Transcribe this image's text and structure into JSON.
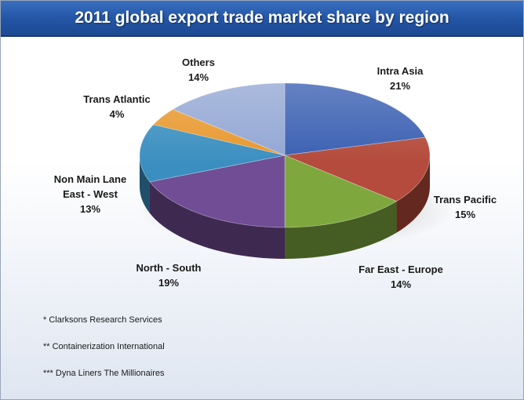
{
  "chart_data": {
    "type": "pie",
    "title": "2011 global export trade market share by region",
    "slices": [
      {
        "label": "Intra Asia",
        "value": 21,
        "display": "21%",
        "color": "#3a5fb2"
      },
      {
        "label": "Trans Pacific",
        "value": 15,
        "display": "15%",
        "color": "#b44b3c"
      },
      {
        "label": "Far East - Europe",
        "value": 14,
        "display": "14%",
        "color": "#7ea83e"
      },
      {
        "label": "North - South",
        "value": 19,
        "display": "19%",
        "color": "#704d94"
      },
      {
        "label": "Non Main Lane East - West",
        "label_lines": [
          "Non Main Lane",
          "East - West"
        ],
        "value": 13,
        "display": "13%",
        "color": "#3b8fc0"
      },
      {
        "label": "Trans Atlantic",
        "value": 4,
        "display": "4%",
        "color": "#e8982e"
      },
      {
        "label": "Others",
        "value": 14,
        "display": "14%",
        "color": "#93a7d4"
      }
    ],
    "style": "3d-exploded-tilted"
  },
  "footnotes": [
    "* Clarksons Research Services",
    "** Containerization International",
    "*** Dyna Liners The Millionaires"
  ]
}
